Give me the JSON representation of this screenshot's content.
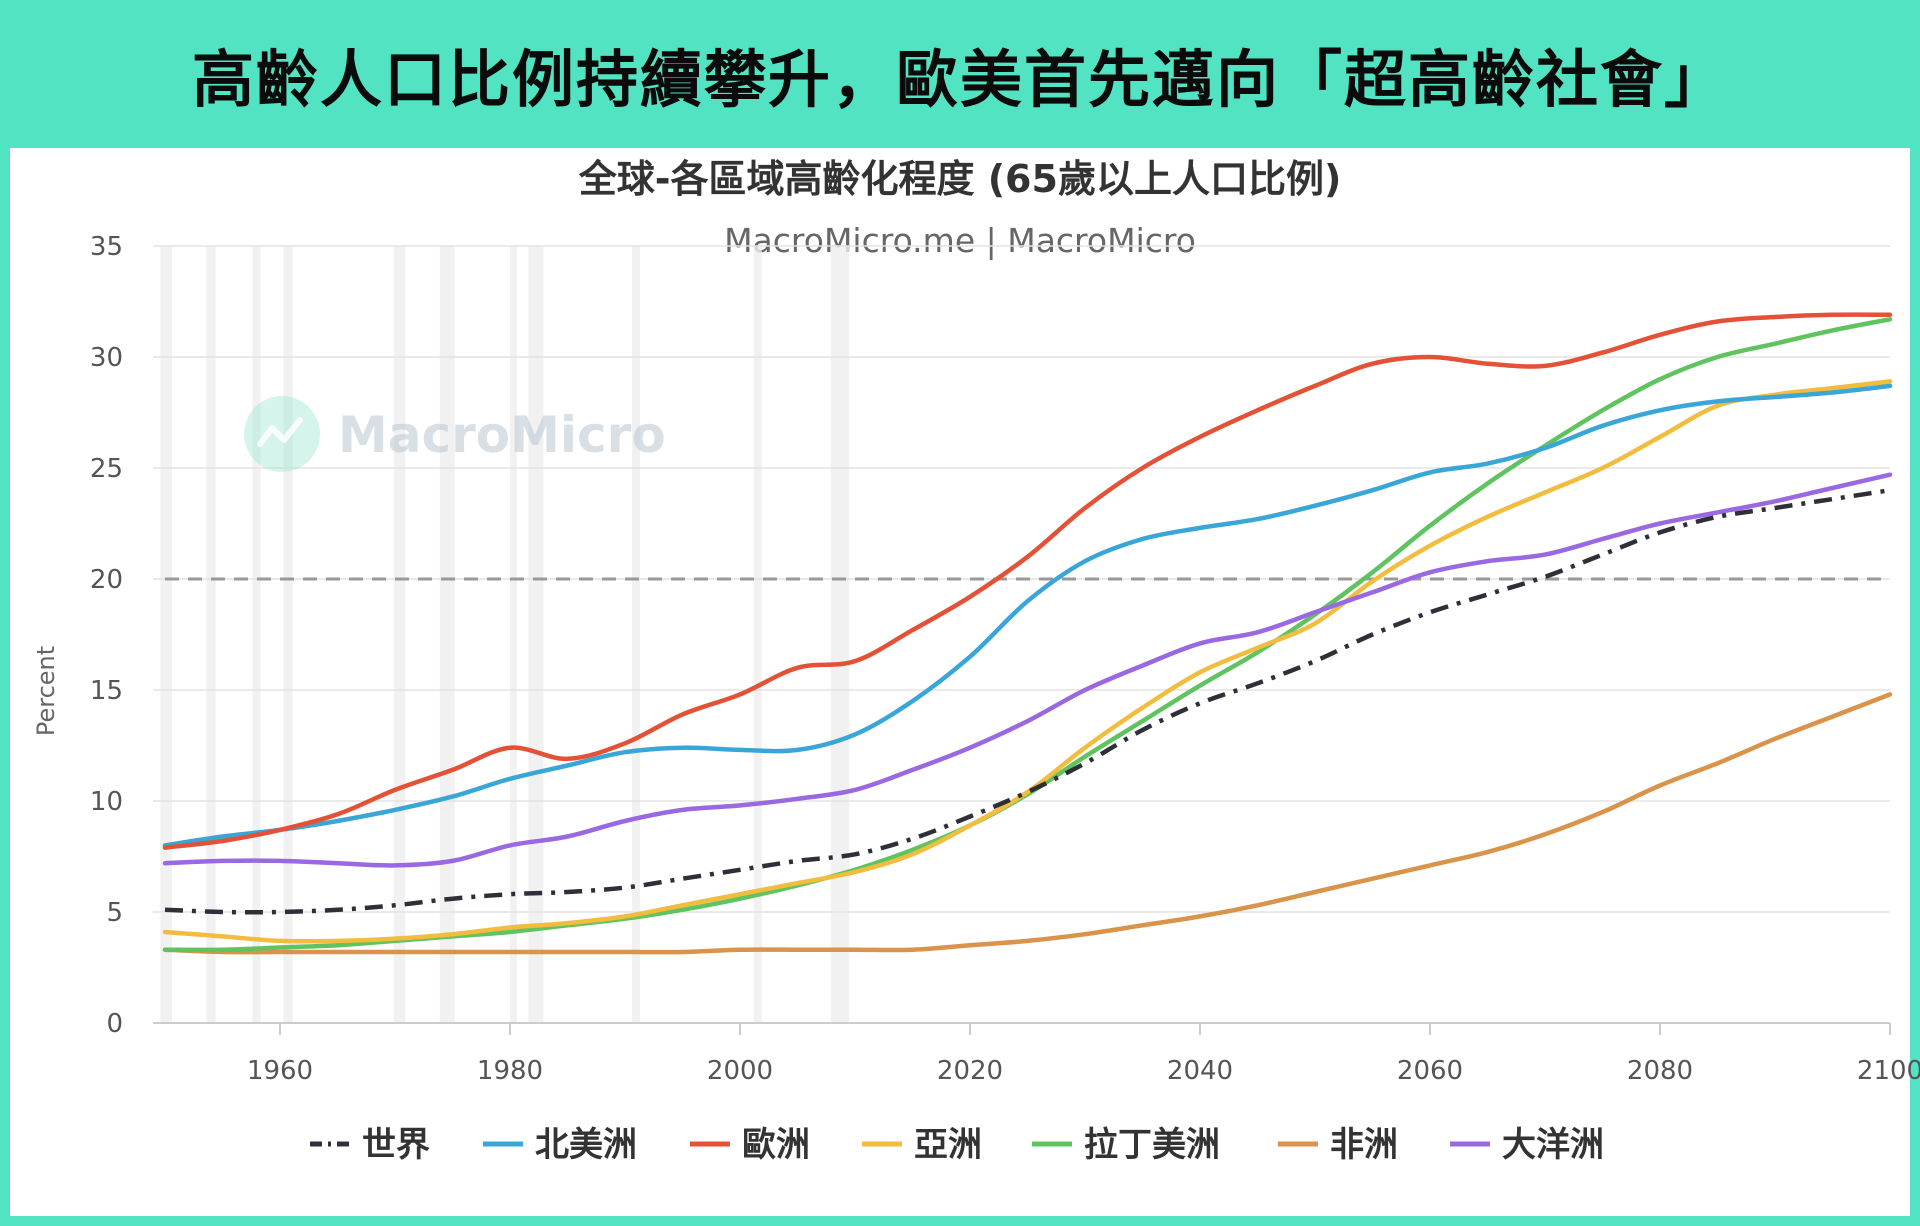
{
  "banner": {
    "title": "高齡人口比例持續攀升，歐美首先邁向「超高齡社會」"
  },
  "chart_data": {
    "type": "line",
    "title": "全球-各區域高齡化程度 (65歲以上人口比例)",
    "subtitle": "MacroMicro.me | MacroMicro",
    "watermark": "MacroMicro",
    "ylabel": "Percent",
    "xlim": [
      1950,
      2100
    ],
    "ylim": [
      0,
      35
    ],
    "x_ticks": [
      1960,
      1980,
      2000,
      2020,
      2040,
      2060,
      2080,
      2100
    ],
    "y_ticks": [
      0,
      5,
      10,
      15,
      20,
      25,
      30,
      35
    ],
    "reference_line": 20,
    "grid": "horizontal",
    "legend_position": "bottom",
    "recession_bands": [
      [
        1949.6,
        1950.6
      ],
      [
        1953.6,
        1954.4
      ],
      [
        1957.6,
        1958.3
      ],
      [
        1960.3,
        1961.1
      ],
      [
        1969.9,
        1970.9
      ],
      [
        1973.9,
        1975.2
      ],
      [
        1980.0,
        1980.6
      ],
      [
        1981.6,
        1982.9
      ],
      [
        1990.6,
        1991.3
      ],
      [
        2001.2,
        2001.9
      ],
      [
        2007.9,
        2009.5
      ]
    ],
    "series": [
      {
        "name": "世界",
        "color": "#2f2f3a",
        "dash": "dashdot",
        "points": [
          [
            1950,
            5.1
          ],
          [
            1955,
            5.0
          ],
          [
            1960,
            5.0
          ],
          [
            1965,
            5.1
          ],
          [
            1970,
            5.3
          ],
          [
            1975,
            5.6
          ],
          [
            1980,
            5.8
          ],
          [
            1985,
            5.9
          ],
          [
            1990,
            6.1
          ],
          [
            1995,
            6.5
          ],
          [
            2000,
            6.9
          ],
          [
            2005,
            7.3
          ],
          [
            2010,
            7.6
          ],
          [
            2015,
            8.3
          ],
          [
            2020,
            9.3
          ],
          [
            2025,
            10.4
          ],
          [
            2030,
            11.7
          ],
          [
            2035,
            13.2
          ],
          [
            2040,
            14.4
          ],
          [
            2045,
            15.3
          ],
          [
            2050,
            16.3
          ],
          [
            2055,
            17.5
          ],
          [
            2060,
            18.5
          ],
          [
            2065,
            19.3
          ],
          [
            2070,
            20.1
          ],
          [
            2075,
            21.1
          ],
          [
            2080,
            22.1
          ],
          [
            2085,
            22.8
          ],
          [
            2090,
            23.2
          ],
          [
            2095,
            23.6
          ],
          [
            2100,
            24.0
          ]
        ]
      },
      {
        "name": "北美洲",
        "color": "#3aa6d8",
        "dash": "solid",
        "points": [
          [
            1950,
            8.0
          ],
          [
            1955,
            8.4
          ],
          [
            1960,
            8.7
          ],
          [
            1965,
            9.1
          ],
          [
            1970,
            9.6
          ],
          [
            1975,
            10.2
          ],
          [
            1980,
            11.0
          ],
          [
            1985,
            11.6
          ],
          [
            1990,
            12.2
          ],
          [
            1995,
            12.4
          ],
          [
            2000,
            12.3
          ],
          [
            2005,
            12.3
          ],
          [
            2010,
            13.0
          ],
          [
            2015,
            14.5
          ],
          [
            2020,
            16.5
          ],
          [
            2025,
            19.0
          ],
          [
            2030,
            20.8
          ],
          [
            2035,
            21.8
          ],
          [
            2040,
            22.3
          ],
          [
            2045,
            22.7
          ],
          [
            2050,
            23.3
          ],
          [
            2055,
            24.0
          ],
          [
            2060,
            24.8
          ],
          [
            2065,
            25.2
          ],
          [
            2070,
            25.9
          ],
          [
            2075,
            26.9
          ],
          [
            2080,
            27.6
          ],
          [
            2085,
            28.0
          ],
          [
            2090,
            28.2
          ],
          [
            2095,
            28.4
          ],
          [
            2100,
            28.7
          ]
        ]
      },
      {
        "name": "歐洲",
        "color": "#e35237",
        "dash": "solid",
        "points": [
          [
            1950,
            7.9
          ],
          [
            1955,
            8.2
          ],
          [
            1960,
            8.7
          ],
          [
            1965,
            9.4
          ],
          [
            1970,
            10.5
          ],
          [
            1975,
            11.4
          ],
          [
            1980,
            12.4
          ],
          [
            1985,
            11.9
          ],
          [
            1990,
            12.6
          ],
          [
            1995,
            13.9
          ],
          [
            2000,
            14.8
          ],
          [
            2005,
            16.0
          ],
          [
            2010,
            16.3
          ],
          [
            2015,
            17.7
          ],
          [
            2020,
            19.2
          ],
          [
            2025,
            21.0
          ],
          [
            2030,
            23.2
          ],
          [
            2035,
            25.0
          ],
          [
            2040,
            26.4
          ],
          [
            2045,
            27.6
          ],
          [
            2050,
            28.7
          ],
          [
            2055,
            29.7
          ],
          [
            2060,
            30.0
          ],
          [
            2065,
            29.7
          ],
          [
            2070,
            29.6
          ],
          [
            2075,
            30.2
          ],
          [
            2080,
            31.0
          ],
          [
            2085,
            31.6
          ],
          [
            2090,
            31.8
          ],
          [
            2095,
            31.9
          ],
          [
            2100,
            31.9
          ]
        ]
      },
      {
        "name": "亞洲",
        "color": "#f2bd3e",
        "dash": "solid",
        "points": [
          [
            1950,
            4.1
          ],
          [
            1955,
            3.9
          ],
          [
            1960,
            3.7
          ],
          [
            1965,
            3.7
          ],
          [
            1970,
            3.8
          ],
          [
            1975,
            4.0
          ],
          [
            1980,
            4.3
          ],
          [
            1985,
            4.5
          ],
          [
            1990,
            4.8
          ],
          [
            1995,
            5.3
          ],
          [
            2000,
            5.8
          ],
          [
            2005,
            6.3
          ],
          [
            2010,
            6.8
          ],
          [
            2015,
            7.6
          ],
          [
            2020,
            8.9
          ],
          [
            2025,
            10.4
          ],
          [
            2030,
            12.4
          ],
          [
            2035,
            14.2
          ],
          [
            2040,
            15.8
          ],
          [
            2045,
            16.9
          ],
          [
            2050,
            18.0
          ],
          [
            2055,
            19.9
          ],
          [
            2060,
            21.5
          ],
          [
            2065,
            22.8
          ],
          [
            2070,
            23.9
          ],
          [
            2075,
            25.0
          ],
          [
            2080,
            26.4
          ],
          [
            2085,
            27.8
          ],
          [
            2090,
            28.3
          ],
          [
            2095,
            28.6
          ],
          [
            2100,
            28.9
          ]
        ]
      },
      {
        "name": "拉丁美洲",
        "color": "#5fc45f",
        "dash": "solid",
        "points": [
          [
            1950,
            3.3
          ],
          [
            1955,
            3.3
          ],
          [
            1960,
            3.4
          ],
          [
            1965,
            3.5
          ],
          [
            1970,
            3.7
          ],
          [
            1975,
            3.9
          ],
          [
            1980,
            4.1
          ],
          [
            1985,
            4.4
          ],
          [
            1990,
            4.7
          ],
          [
            1995,
            5.1
          ],
          [
            2000,
            5.6
          ],
          [
            2005,
            6.2
          ],
          [
            2010,
            6.9
          ],
          [
            2015,
            7.8
          ],
          [
            2020,
            8.9
          ],
          [
            2025,
            10.3
          ],
          [
            2030,
            12.0
          ],
          [
            2035,
            13.6
          ],
          [
            2040,
            15.2
          ],
          [
            2045,
            16.7
          ],
          [
            2050,
            18.4
          ],
          [
            2055,
            20.3
          ],
          [
            2060,
            22.4
          ],
          [
            2065,
            24.3
          ],
          [
            2070,
            26.0
          ],
          [
            2075,
            27.6
          ],
          [
            2080,
            29.0
          ],
          [
            2085,
            30.0
          ],
          [
            2090,
            30.6
          ],
          [
            2095,
            31.2
          ],
          [
            2100,
            31.7
          ]
        ]
      },
      {
        "name": "非洲",
        "color": "#d9934a",
        "dash": "solid",
        "points": [
          [
            1950,
            3.3
          ],
          [
            1955,
            3.2
          ],
          [
            1960,
            3.2
          ],
          [
            1965,
            3.2
          ],
          [
            1970,
            3.2
          ],
          [
            1975,
            3.2
          ],
          [
            1980,
            3.2
          ],
          [
            1985,
            3.2
          ],
          [
            1990,
            3.2
          ],
          [
            1995,
            3.2
          ],
          [
            2000,
            3.3
          ],
          [
            2005,
            3.3
          ],
          [
            2010,
            3.3
          ],
          [
            2015,
            3.3
          ],
          [
            2020,
            3.5
          ],
          [
            2025,
            3.7
          ],
          [
            2030,
            4.0
          ],
          [
            2035,
            4.4
          ],
          [
            2040,
            4.8
          ],
          [
            2045,
            5.3
          ],
          [
            2050,
            5.9
          ],
          [
            2055,
            6.5
          ],
          [
            2060,
            7.1
          ],
          [
            2065,
            7.7
          ],
          [
            2070,
            8.5
          ],
          [
            2075,
            9.5
          ],
          [
            2080,
            10.7
          ],
          [
            2085,
            11.7
          ],
          [
            2090,
            12.8
          ],
          [
            2095,
            13.8
          ],
          [
            2100,
            14.8
          ]
        ]
      },
      {
        "name": "大洋洲",
        "color": "#9a68e0",
        "dash": "solid",
        "points": [
          [
            1950,
            7.2
          ],
          [
            1955,
            7.3
          ],
          [
            1960,
            7.3
          ],
          [
            1965,
            7.2
          ],
          [
            1970,
            7.1
          ],
          [
            1975,
            7.3
          ],
          [
            1980,
            8.0
          ],
          [
            1985,
            8.4
          ],
          [
            1990,
            9.1
          ],
          [
            1995,
            9.6
          ],
          [
            2000,
            9.8
          ],
          [
            2005,
            10.1
          ],
          [
            2010,
            10.5
          ],
          [
            2015,
            11.4
          ],
          [
            2020,
            12.4
          ],
          [
            2025,
            13.6
          ],
          [
            2030,
            15.0
          ],
          [
            2035,
            16.1
          ],
          [
            2040,
            17.1
          ],
          [
            2045,
            17.6
          ],
          [
            2050,
            18.5
          ],
          [
            2055,
            19.4
          ],
          [
            2060,
            20.3
          ],
          [
            2065,
            20.8
          ],
          [
            2070,
            21.1
          ],
          [
            2075,
            21.8
          ],
          [
            2080,
            22.5
          ],
          [
            2085,
            23.0
          ],
          [
            2090,
            23.5
          ],
          [
            2095,
            24.1
          ],
          [
            2100,
            24.7
          ]
        ]
      }
    ]
  }
}
